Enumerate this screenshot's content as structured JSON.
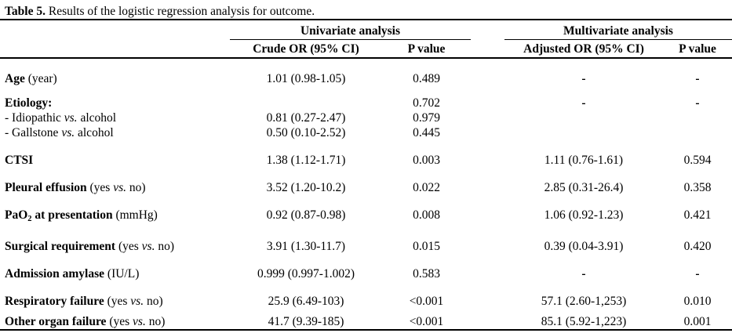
{
  "title": {
    "label": "Table 5.",
    "text": " Results of the logistic regression analysis for outcome."
  },
  "header": {
    "groups": [
      {
        "label": "Univariate analysis"
      },
      {
        "label": "Multivariate analysis"
      }
    ],
    "columns": {
      "crude": "Crude OR (95% CI)",
      "p1": "P value",
      "adjusted": "Adjusted OR (95% CI)",
      "p2": "P value"
    }
  },
  "colors": {
    "background": "#ffffff",
    "text": "#000000",
    "rule": "#000000"
  },
  "rows": [
    {
      "name": "age",
      "lines": [
        {
          "label": [
            {
              "t": "Age",
              "s": "b"
            },
            {
              "t": " (year)",
              "s": "n"
            }
          ],
          "crude": "1.01 (0.98-1.05)",
          "p_uni": "0.489",
          "adj": "-",
          "p_multi": "-"
        }
      ]
    },
    {
      "name": "etiology",
      "lines": [
        {
          "label": [
            {
              "t": "Etiology:",
              "s": "b"
            }
          ],
          "crude": "",
          "p_uni": "0.702",
          "adj": "-",
          "p_multi": "-"
        },
        {
          "label": [
            {
              "t": "- Idiopathic ",
              "s": "n"
            },
            {
              "t": "vs.",
              "s": "i"
            },
            {
              "t": " alcohol",
              "s": "n"
            }
          ],
          "crude": "0.81 (0.27-2.47)",
          "p_uni": "0.979",
          "adj": "",
          "p_multi": ""
        },
        {
          "label": [
            {
              "t": "- Gallstone ",
              "s": "n"
            },
            {
              "t": "vs.",
              "s": "i"
            },
            {
              "t": " alcohol",
              "s": "n"
            }
          ],
          "crude": "0.50 (0.10-2.52)",
          "p_uni": "0.445",
          "adj": "",
          "p_multi": ""
        }
      ]
    },
    {
      "name": "ctsi",
      "lines": [
        {
          "label": [
            {
              "t": "CTSI",
              "s": "b"
            }
          ],
          "crude": "1.38 (1.12-1.71)",
          "p_uni": "0.003",
          "adj": "1.11 (0.76-1.61)",
          "p_multi": "0.594"
        }
      ]
    },
    {
      "name": "pleural-effusion",
      "lines": [
        {
          "label": [
            {
              "t": "Pleural effusion",
              "s": "b"
            },
            {
              "t": " (yes ",
              "s": "n"
            },
            {
              "t": "vs.",
              "s": "i"
            },
            {
              "t": " no)",
              "s": "n"
            }
          ],
          "crude": "3.52 (1.20-10.2)",
          "p_uni": "0.022",
          "adj": "2.85 (0.31-26.4)",
          "p_multi": "0.358"
        }
      ]
    },
    {
      "name": "pao2",
      "lines": [
        {
          "label": [
            {
              "t": "PaO",
              "s": "b"
            },
            {
              "t": "2",
              "s": "bsub"
            },
            {
              "t": " at presentation ",
              "s": "b"
            },
            {
              "t": "(mmHg)",
              "s": "n"
            }
          ],
          "crude": "0.92 (0.87-0.98)",
          "p_uni": "0.008",
          "adj": "1.06 (0.92-1.23)",
          "p_multi": "0.421"
        }
      ]
    },
    {
      "name": "surgical-requirement",
      "lines": [
        {
          "label": [
            {
              "t": "Surgical requirement",
              "s": "b"
            },
            {
              "t": " (yes ",
              "s": "n"
            },
            {
              "t": "vs.",
              "s": "i"
            },
            {
              "t": " no)",
              "s": "n"
            }
          ],
          "crude": "3.91 (1.30-11.7)",
          "p_uni": "0.015",
          "adj": "0.39 (0.04-3.91)",
          "p_multi": "0.420"
        }
      ]
    },
    {
      "name": "admission-amylase",
      "lines": [
        {
          "label": [
            {
              "t": "Admission amylase",
              "s": "b"
            },
            {
              "t": " (IU/L)",
              "s": "n"
            }
          ],
          "crude": "0.999 (0.997-1.002)",
          "p_uni": "0.583",
          "adj": "-",
          "p_multi": "-"
        }
      ]
    },
    {
      "name": "respiratory-failure",
      "lines": [
        {
          "label": [
            {
              "t": "Respiratory failure",
              "s": "b"
            },
            {
              "t": " (yes ",
              "s": "n"
            },
            {
              "t": "vs.",
              "s": "i"
            },
            {
              "t": " no)",
              "s": "n"
            }
          ],
          "crude": "25.9 (6.49-103)",
          "p_uni": "<0.001",
          "adj": "57.1 (2.60-1,253)",
          "p_multi": "0.010"
        }
      ]
    },
    {
      "name": "other-organ-failure",
      "lines": [
        {
          "label": [
            {
              "t": "Other organ failure",
              "s": "b"
            },
            {
              "t": " (yes ",
              "s": "n"
            },
            {
              "t": "vs.",
              "s": "i"
            },
            {
              "t": " no)",
              "s": "n"
            }
          ],
          "crude": "41.7 (9.39-185)",
          "p_uni": "<0.001",
          "adj": "85.1 (5.92-1,223)",
          "p_multi": "0.001"
        }
      ]
    }
  ]
}
